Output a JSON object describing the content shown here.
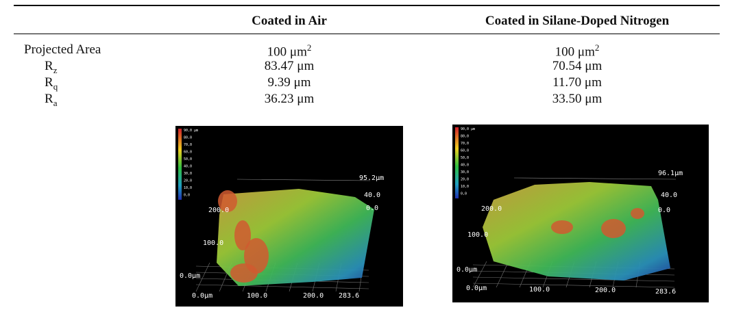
{
  "table": {
    "header": [
      "Coated in Air",
      "Coated in Silane-Doped Nitrogen"
    ],
    "rows": [
      [
        {
          "text": "Projected Area"
        },
        {
          "text": "100 μm",
          "sup": "2"
        },
        {
          "text": "100 μm",
          "sup": "2"
        }
      ],
      [
        {
          "text": "R",
          "sub": "z"
        },
        {
          "text": "83.47 μm"
        },
        {
          "text": "70.54 μm"
        }
      ],
      [
        {
          "text": "R",
          "sub": "q"
        },
        {
          "text": "9.39 μm"
        },
        {
          "text": "11.70 μm"
        }
      ],
      [
        {
          "text": "R",
          "sub": "a"
        },
        {
          "text": "36.23 μm"
        },
        {
          "text": "33.50 μm"
        }
      ]
    ]
  },
  "images": [
    {
      "legend": [
        "90,0 μm",
        "80,0",
        "70,0",
        "60,0",
        "50,0",
        "40,0",
        "30,0",
        "20,0",
        "10,0",
        "0,0"
      ],
      "labels": [
        "95.2μm",
        "40.0",
        "0.0",
        "200.0",
        "100.0",
        "0.0μm",
        "0.0μm",
        "100.0",
        "200.0",
        "283.6"
      ]
    },
    {
      "legend": [
        "90,0 μm",
        "80,0",
        "70,0",
        "60,0",
        "50,0",
        "40,0",
        "30,0",
        "20,0",
        "10,0",
        "0,0"
      ],
      "labels": [
        "96.1μm",
        "40.0",
        "0.0",
        "200.0",
        "100.0",
        "0.0μm",
        "0.0μm",
        "100.0",
        "200.0",
        "283.6"
      ]
    }
  ]
}
